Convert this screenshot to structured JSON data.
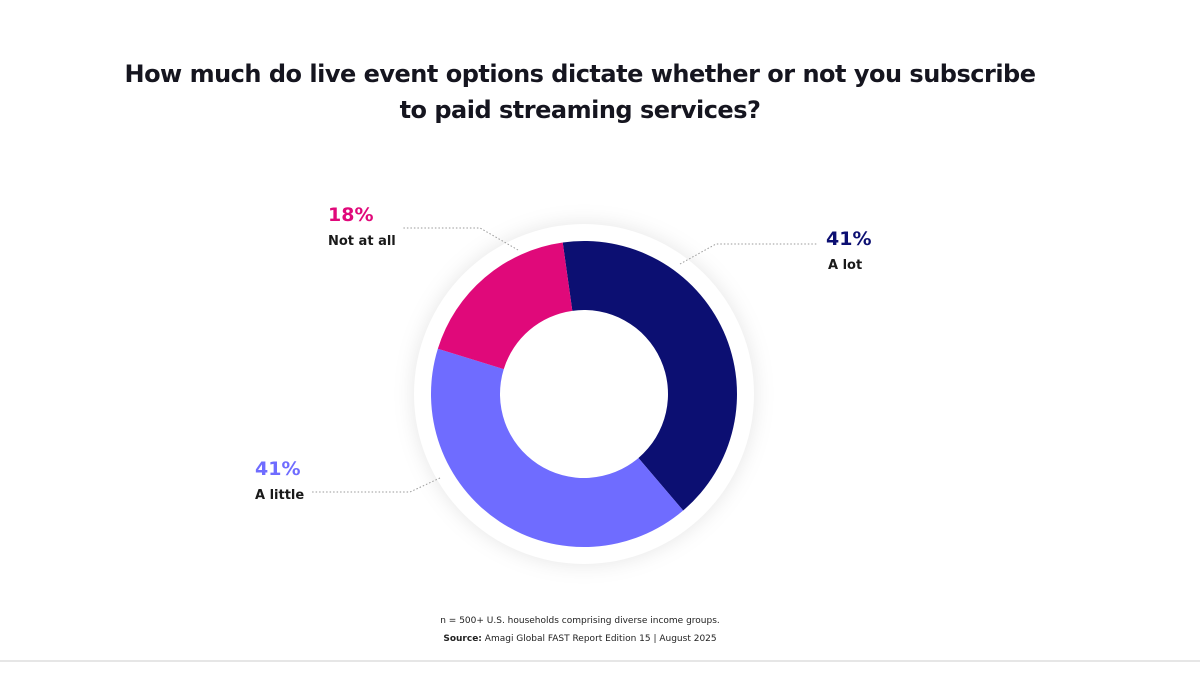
{
  "chart_data": {
    "type": "pie",
    "variant": "donut",
    "title_lines": [
      "How much do live event options dictate whether or not you subscribe",
      "to paid streaming services?"
    ],
    "slices": [
      {
        "label": "A lot",
        "value": 41,
        "value_label": "41%",
        "color": "#0c0f72"
      },
      {
        "label": "A little",
        "value": 41,
        "value_label": "41%",
        "color": "#6f6cff"
      },
      {
        "label": "Not at all",
        "value": 18,
        "value_label": "18%",
        "color": "#e0097a"
      }
    ]
  },
  "footnote": {
    "sample": "n = 500+ U.S. households comprising diverse income groups.",
    "source_label": "Source:",
    "source_text": "Amagi Global FAST Report Edition 15 | August 2025"
  }
}
